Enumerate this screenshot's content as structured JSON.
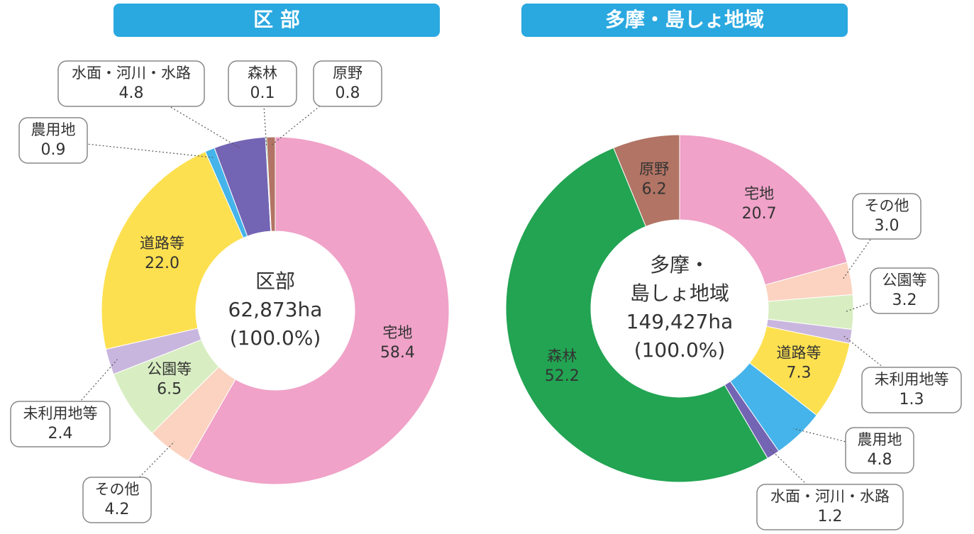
{
  "chart_data": [
    {
      "type": "donut",
      "title": "区 部",
      "center": [
        "区部",
        "62,873ha",
        "(100.0%)"
      ],
      "categories": [
        "宅地",
        "その他",
        "公園等",
        "未利用地等",
        "道路等",
        "農用地",
        "水面・河川・水路",
        "森林",
        "原野"
      ],
      "values": [
        58.4,
        4.2,
        6.5,
        2.4,
        22.0,
        0.9,
        4.8,
        0.1,
        0.8
      ],
      "value_labels": [
        "58.4",
        "4.2",
        "6.5",
        "2.4",
        "22.0",
        "0.9",
        "4.8",
        "0.1",
        "0.8"
      ],
      "colors": [
        "#f0a2c8",
        "#fbd3c0",
        "#d8eec2",
        "#c9b6de",
        "#fde050",
        "#45b4ea",
        "#7464b4",
        "#22a452",
        "#b27464"
      ]
    },
    {
      "type": "donut",
      "title": "多摩・島しょ地域",
      "center": [
        "多摩・",
        "島しょ地域",
        "149,427ha",
        "(100.0%)"
      ],
      "categories": [
        "宅地",
        "その他",
        "公園等",
        "未利用地等",
        "道路等",
        "農用地",
        "水面・河川・水路",
        "森林",
        "原野"
      ],
      "values": [
        20.7,
        3.0,
        3.2,
        1.3,
        7.3,
        4.8,
        1.2,
        52.2,
        6.2
      ],
      "value_labels": [
        "20.7",
        "3.0",
        "3.2",
        "1.3",
        "7.3",
        "4.8",
        "1.2",
        "52.2",
        "6.2"
      ],
      "colors": [
        "#f0a2c8",
        "#fbd3c0",
        "#d8eec2",
        "#c9b6de",
        "#fde050",
        "#45b4ea",
        "#7464b4",
        "#22a452",
        "#b27464"
      ]
    }
  ]
}
